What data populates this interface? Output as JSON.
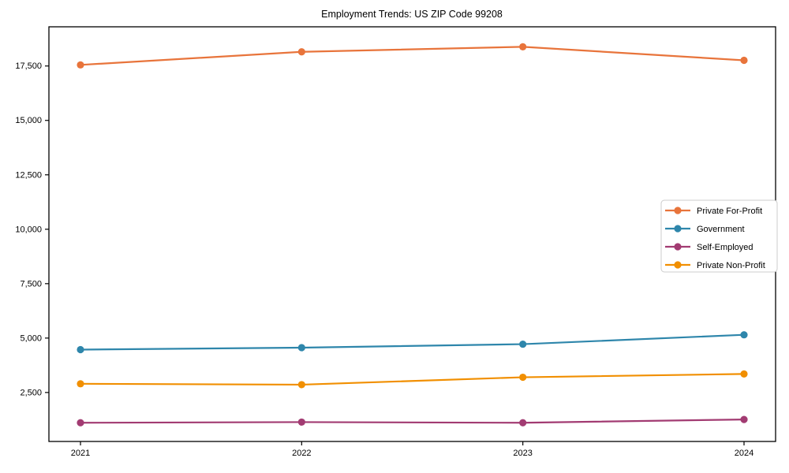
{
  "chart_data": {
    "type": "line",
    "title": "Employment Trends: US ZIP Code 99208",
    "categories": [
      "2021",
      "2022",
      "2023",
      "2024"
    ],
    "series": [
      {
        "name": "Private For-Profit",
        "color": "#E8743B",
        "values": [
          17550,
          18150,
          18380,
          17760
        ]
      },
      {
        "name": "Government",
        "color": "#2E86AB",
        "values": [
          4470,
          4560,
          4720,
          5150
        ]
      },
      {
        "name": "Self-Employed",
        "color": "#A23B72",
        "values": [
          1110,
          1140,
          1110,
          1260
        ]
      },
      {
        "name": "Private Non-Profit",
        "color": "#F18F01",
        "values": [
          2900,
          2860,
          3200,
          3350
        ]
      }
    ],
    "xlabel": "",
    "ylabel": "",
    "ylim": [
      250,
      19300
    ],
    "yticks": [
      2500,
      5000,
      7500,
      10000,
      12500,
      15000,
      17500
    ],
    "ytick_labels": [
      "2,500",
      "5,000",
      "7,500",
      "10,000",
      "12,500",
      "15,000",
      "17,500"
    ],
    "grid": false,
    "legend_position": "center-right",
    "axis_color": "#000000",
    "background": "#ffffff",
    "marker": "circle"
  }
}
